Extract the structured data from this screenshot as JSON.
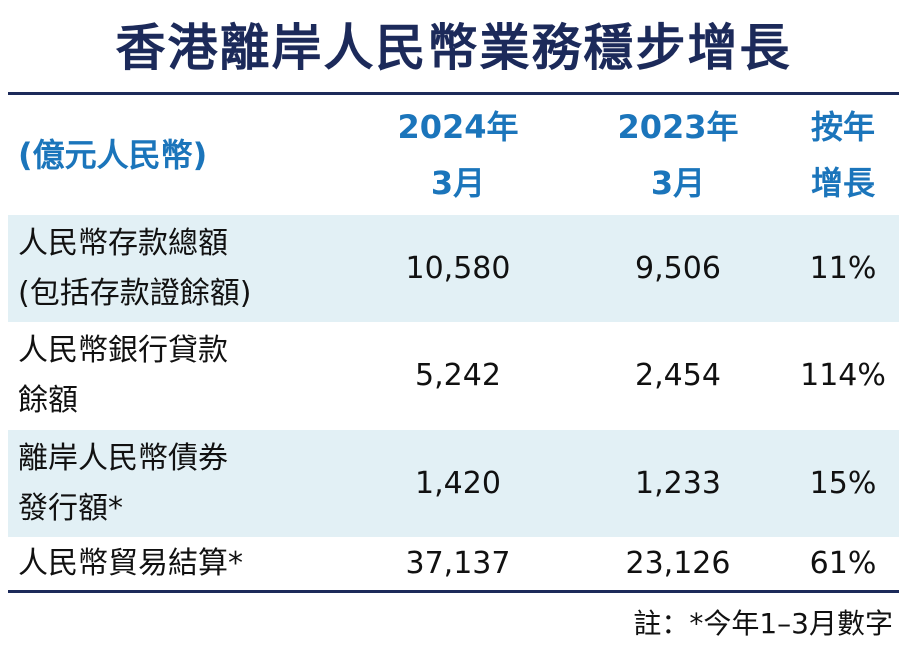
{
  "title": "香港離岸人民幣業務穩步增長",
  "table": {
    "header": [
      [
        "(億元人民幣)"
      ],
      [
        "2024年",
        "3月"
      ],
      [
        "2023年",
        "3月"
      ],
      [
        "按年",
        "增長"
      ]
    ],
    "rows": [
      [
        [
          "人民幣存款總額",
          "(包括存款證餘額)"
        ],
        "10,580",
        "9,506",
        "11%"
      ],
      [
        [
          "人民幣銀行貸款",
          "餘額"
        ],
        "5,242",
        "2,454",
        "114%"
      ],
      [
        [
          "離岸人民幣債券",
          "發行額*"
        ],
        "1,420",
        "1,233",
        "15%"
      ],
      [
        [
          "人民幣貿易結算*"
        ],
        "37,137",
        "23,126",
        "61%"
      ]
    ]
  },
  "footnote": "註：*今年1–3月數字"
}
